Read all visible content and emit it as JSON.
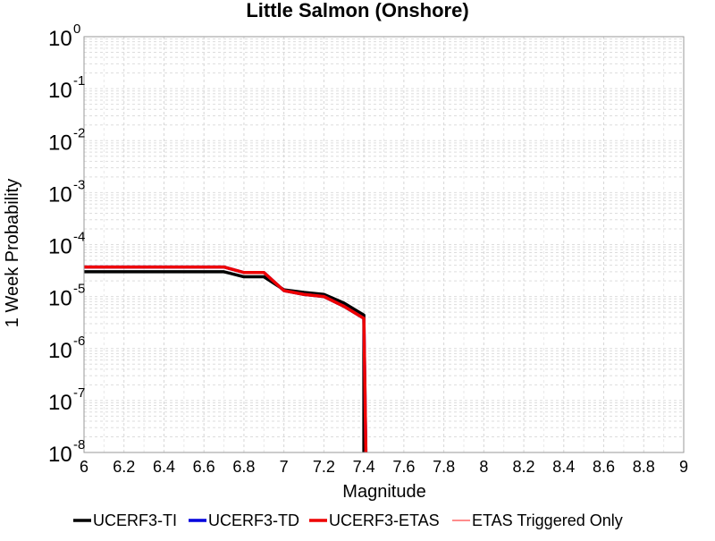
{
  "chart_data": {
    "type": "line",
    "title": "Little Salmon (Onshore)",
    "xlabel": "Magnitude",
    "ylabel": "1 Week Probability",
    "xlim": [
      6,
      9
    ],
    "ylim": [
      1e-08,
      1
    ],
    "yscale": "log",
    "grid": true,
    "legend_position": "bottom",
    "x_ticks": [
      "6",
      "6.2",
      "6.4",
      "6.6",
      "6.8",
      "7",
      "7.2",
      "7.4",
      "7.6",
      "7.8",
      "8",
      "8.2",
      "8.4",
      "8.6",
      "8.8",
      "9"
    ],
    "y_ticks": [
      {
        "base": "10",
        "exp": "0"
      },
      {
        "base": "10",
        "exp": "-1"
      },
      {
        "base": "10",
        "exp": "-2"
      },
      {
        "base": "10",
        "exp": "-3"
      },
      {
        "base": "10",
        "exp": "-4"
      },
      {
        "base": "10",
        "exp": "-5"
      },
      {
        "base": "10",
        "exp": "-6"
      },
      {
        "base": "10",
        "exp": "-7"
      },
      {
        "base": "10",
        "exp": "-8"
      }
    ],
    "series": [
      {
        "name": "UCERF3-TI",
        "color": "#000000",
        "x": [
          6.0,
          6.1,
          6.2,
          6.3,
          6.4,
          6.5,
          6.6,
          6.7,
          6.8,
          6.9,
          7.0,
          7.1,
          7.2,
          7.3,
          7.4,
          7.4
        ],
        "y": [
          3e-05,
          3e-05,
          3e-05,
          3e-05,
          3e-05,
          3e-05,
          3e-05,
          3e-05,
          2.4e-05,
          2.4e-05,
          1.35e-05,
          1.2e-05,
          1.1e-05,
          7.5e-06,
          4.4e-06,
          1e-08
        ]
      },
      {
        "name": "UCERF3-TD",
        "color": "#0000dd",
        "x": [
          6.0,
          6.1,
          6.2,
          6.3,
          6.4,
          6.5,
          6.6,
          6.7,
          6.8,
          6.9,
          7.0,
          7.1,
          7.2,
          7.3,
          7.4,
          7.41
        ],
        "y": [
          3.7e-05,
          3.7e-05,
          3.7e-05,
          3.7e-05,
          3.7e-05,
          3.7e-05,
          3.7e-05,
          3.7e-05,
          2.9e-05,
          2.9e-05,
          1.3e-05,
          1.1e-05,
          1e-05,
          6.5e-06,
          3.8e-06,
          1e-08
        ]
      },
      {
        "name": "UCERF3-ETAS",
        "color": "#ee0000",
        "x": [
          6.0,
          6.1,
          6.2,
          6.3,
          6.4,
          6.5,
          6.6,
          6.7,
          6.8,
          6.9,
          7.0,
          7.1,
          7.2,
          7.3,
          7.4,
          7.41
        ],
        "y": [
          3.7e-05,
          3.7e-05,
          3.7e-05,
          3.7e-05,
          3.7e-05,
          3.7e-05,
          3.7e-05,
          3.7e-05,
          2.9e-05,
          2.9e-05,
          1.3e-05,
          1.1e-05,
          1e-05,
          6.5e-06,
          3.8e-06,
          1e-08
        ]
      },
      {
        "name": "ETAS Triggered Only",
        "color": "#ff8c8c",
        "x": [],
        "y": []
      }
    ]
  }
}
